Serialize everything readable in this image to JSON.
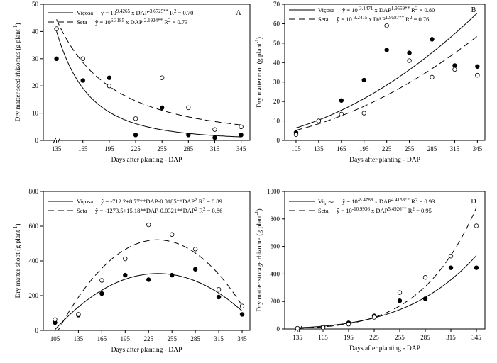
{
  "chart_data": [
    {
      "type": "scatter",
      "panel_letter": "A",
      "xlabel": "Days after planting - DAP",
      "ylabel": "Dry matter seed-rhizomes",
      "ylabel_unit": "(g plant",
      "ylabel_exp": "-1",
      "ylabel_close": ")",
      "xticks": [
        135,
        165,
        195,
        225,
        255,
        285,
        315,
        345
      ],
      "yticks": [
        0,
        10,
        20,
        30,
        40,
        50
      ],
      "xlim": [
        120,
        355
      ],
      "ylim": [
        0,
        50
      ],
      "axis_break": true,
      "series": [
        {
          "name": "Viçosa",
          "marker": "filled",
          "line": "solid",
          "x": [
            135,
            165,
            195,
            225,
            255,
            285,
            315,
            345
          ],
          "y": [
            30,
            22,
            23,
            2,
            12,
            2,
            1,
            2
          ],
          "model": {
            "kind": "power",
            "a": 9.4265,
            "b": -3.6725
          },
          "eq_parts": [
            "ŷ = 10",
            "9.4265",
            " x DAP",
            "-3.6725**",
            " R",
            "2",
            " = 0.70"
          ]
        },
        {
          "name": "Seta",
          "marker": "open",
          "line": "dashed",
          "x": [
            135,
            165,
            195,
            225,
            255,
            285,
            315,
            345
          ],
          "y": [
            41,
            30,
            20,
            8,
            23,
            12,
            4,
            5
          ],
          "model": {
            "kind": "power",
            "a": 6.3185,
            "b": -2.1924
          },
          "eq_parts": [
            "ŷ = 10",
            "6.3185",
            " x DAP",
            "-2.1924**",
            "   R",
            "2",
            " = 0.73"
          ]
        }
      ]
    },
    {
      "type": "scatter",
      "panel_letter": "B",
      "xlabel": "Days after planting - DAP",
      "ylabel": "Dry matter root",
      "ylabel_unit": "(g plant",
      "ylabel_exp": "-1",
      "ylabel_close": ")",
      "xticks": [
        105,
        135,
        165,
        195,
        225,
        255,
        285,
        315,
        345
      ],
      "yticks": [
        0,
        10,
        20,
        30,
        40,
        50,
        60,
        70
      ],
      "xlim": [
        90,
        355
      ],
      "ylim": [
        0,
        70
      ],
      "axis_break": false,
      "series": [
        {
          "name": "Viçosa",
          "marker": "filled",
          "line": "solid",
          "x": [
            105,
            135,
            165,
            195,
            225,
            255,
            285,
            315,
            345
          ],
          "y": [
            4,
            10,
            20.5,
            31,
            46.5,
            45,
            52,
            38.5,
            38
          ],
          "model": {
            "kind": "power",
            "a": -3.1471,
            "b": 1.9559
          },
          "eq_parts": [
            "ŷ = 10",
            "-3.1471",
            " x DAP",
            "1.9559**",
            " R",
            "2",
            " = 0.80"
          ]
        },
        {
          "name": "Seta",
          "marker": "open",
          "line": "dashed",
          "x": [
            105,
            135,
            165,
            195,
            225,
            255,
            285,
            315,
            345
          ],
          "y": [
            3,
            10,
            13.5,
            14,
            59,
            41,
            32.5,
            36.5,
            33.5
          ],
          "model": {
            "kind": "power",
            "a": -3.2415,
            "b": 1.9587
          },
          "eq_parts": [
            "ŷ = 10",
            "-3.2415",
            " x DAP",
            "1.9587**",
            " R",
            "2",
            " = 0.76"
          ]
        }
      ]
    },
    {
      "type": "scatter",
      "panel_letter": "",
      "xlabel": "Days after planting - DAP",
      "ylabel": "Dry matter shoot",
      "ylabel_unit": "(g plant",
      "ylabel_exp": "-1",
      "ylabel_close": ")",
      "xticks": [
        105,
        135,
        165,
        195,
        225,
        255,
        285,
        315,
        345
      ],
      "yticks": [
        0,
        200,
        400,
        600,
        800
      ],
      "xlim": [
        90,
        355
      ],
      "ylim": [
        0,
        800
      ],
      "axis_break": false,
      "series": [
        {
          "name": "Viçosa",
          "marker": "filled",
          "line": "solid",
          "x": [
            105,
            135,
            165,
            195,
            225,
            255,
            285,
            315,
            345
          ],
          "y": [
            45,
            88,
            212,
            318,
            292,
            318,
            352,
            192,
            92
          ],
          "model": {
            "kind": "quadratic",
            "c0": -712.2,
            "c1": 8.77,
            "c2": -0.0185
          },
          "eq_parts": [
            "ŷ = -712.2+8.77**DAP-0.0185**DAP",
            "2",
            " R",
            "2",
            " = 0.89"
          ]
        },
        {
          "name": "Seta",
          "marker": "open",
          "line": "dashed",
          "x": [
            105,
            135,
            165,
            195,
            225,
            255,
            285,
            315,
            345
          ],
          "y": [
            62,
            92,
            288,
            412,
            608,
            552,
            468,
            236,
            140
          ],
          "model": {
            "kind": "quadratic",
            "c0": -1273.5,
            "c1": 15.18,
            "c2": -0.0321
          },
          "eq_parts": [
            "ŷ = -1273.5+15.18**DAP-0.0321**DAP",
            "2",
            " R",
            "2",
            " = 0.86"
          ]
        }
      ]
    },
    {
      "type": "scatter",
      "panel_letter": "D",
      "xlabel": "Days after planting - DAP",
      "ylabel": "Dry matter storage rhizome",
      "ylabel_unit": "(g plant",
      "ylabel_exp": "-1",
      "ylabel_close": ")",
      "xticks": [
        135,
        165,
        195,
        225,
        255,
        285,
        315,
        345
      ],
      "yticks": [
        0,
        200,
        400,
        600,
        800,
        1000
      ],
      "xlim": [
        120,
        355
      ],
      "ylim": [
        0,
        1000
      ],
      "axis_break": true,
      "series": [
        {
          "name": "Viçosa",
          "marker": "filled",
          "line": "solid",
          "x": [
            135,
            165,
            195,
            225,
            255,
            285,
            315,
            345
          ],
          "y": [
            5,
            15,
            45,
            95,
            205,
            220,
            445,
            445
          ],
          "model": {
            "kind": "power",
            "a": -8.4788,
            "b": 4.4158
          },
          "eq_parts": [
            "ŷ = 10",
            "-8.4788",
            " x DAP",
            "4.4158**",
            " R",
            "2",
            " = 0.93"
          ]
        },
        {
          "name": "Seta",
          "marker": "open",
          "line": "dashed",
          "x": [
            135,
            165,
            195,
            225,
            255,
            285,
            315,
            345
          ],
          "y": [
            5,
            10,
            35,
            85,
            265,
            375,
            530,
            750
          ],
          "model": {
            "kind": "power",
            "a": -10.9936,
            "b": 5.4926
          },
          "eq_parts": [
            "ŷ = 10",
            "-10.9936",
            " x DAP",
            "5.4926**",
            " R",
            "2",
            " = 0.95"
          ]
        }
      ]
    }
  ]
}
